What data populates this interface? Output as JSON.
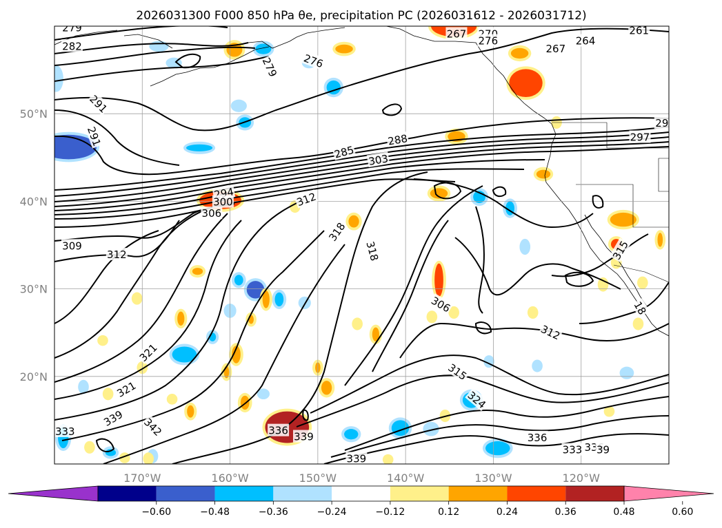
{
  "title": "2026031300 F000 850 hPa θe, precipitation PC (2026031612 - 2026031712)",
  "map": {
    "lon_range": [
      -180,
      -110
    ],
    "lat_range": [
      10,
      60
    ],
    "lon_ticks": [
      "170°W",
      "160°W",
      "150°W",
      "140°W",
      "130°W",
      "120°W"
    ],
    "lat_ticks": [
      "50°N",
      "40°N",
      "30°N",
      "20°N"
    ],
    "grid": true,
    "contour_variable": "850 hPa θe",
    "contour_labels": [
      {
        "text": "279",
        "lon": -178,
        "lat": 59.8,
        "rot": 0
      },
      {
        "text": "282",
        "lon": -178,
        "lat": 57.7,
        "rot": 0
      },
      {
        "text": "279",
        "lon": -155.5,
        "lat": 55.3,
        "rot": 65
      },
      {
        "text": "276",
        "lon": -150.5,
        "lat": 56.0,
        "rot": 20
      },
      {
        "text": "267",
        "lon": -134.2,
        "lat": 59.1,
        "rot": 0
      },
      {
        "text": "270",
        "lon": -130.6,
        "lat": 59.1,
        "rot": 0
      },
      {
        "text": "276",
        "lon": -130.6,
        "lat": 58.3,
        "rot": 0
      },
      {
        "text": "264",
        "lon": -119.5,
        "lat": 58.3,
        "rot": 0
      },
      {
        "text": "267",
        "lon": -122.9,
        "lat": 57.4,
        "rot": 0
      },
      {
        "text": "261",
        "lon": -113.4,
        "lat": 59.5,
        "rot": 0
      },
      {
        "text": "29",
        "lon": -110.8,
        "lat": 48.9,
        "rot": 0
      },
      {
        "text": "297",
        "lon": -113.3,
        "lat": 47.3,
        "rot": 0
      },
      {
        "text": "291",
        "lon": -175.0,
        "lat": 51.1,
        "rot": 45
      },
      {
        "text": "291",
        "lon": -175.5,
        "lat": 47.4,
        "rot": 70
      },
      {
        "text": "285",
        "lon": -147.0,
        "lat": 45.6,
        "rot": -15
      },
      {
        "text": "288",
        "lon": -140.9,
        "lat": 47.0,
        "rot": -10
      },
      {
        "text": "303",
        "lon": -143.1,
        "lat": 44.7,
        "rot": -10
      },
      {
        "text": "294",
        "lon": -160.7,
        "lat": 40.9,
        "rot": -10
      },
      {
        "text": "300",
        "lon": -160.8,
        "lat": 39.9,
        "rot": 0
      },
      {
        "text": "306",
        "lon": -162.1,
        "lat": 38.6,
        "rot": 0
      },
      {
        "text": "312",
        "lon": -151.3,
        "lat": 40.2,
        "rot": -20
      },
      {
        "text": "309",
        "lon": -178.0,
        "lat": 34.9,
        "rot": 0
      },
      {
        "text": "312",
        "lon": -172.9,
        "lat": 33.9,
        "rot": 0
      },
      {
        "text": "318",
        "lon": -147.8,
        "lat": 36.5,
        "rot": -55
      },
      {
        "text": "318",
        "lon": -143.8,
        "lat": 34.3,
        "rot": 75
      },
      {
        "text": "315",
        "lon": -115.5,
        "lat": 34.4,
        "rot": -60
      },
      {
        "text": "306",
        "lon": -136.0,
        "lat": 28.2,
        "rot": 30
      },
      {
        "text": "312",
        "lon": -123.5,
        "lat": 25.0,
        "rot": 25
      },
      {
        "text": "18",
        "lon": -113.3,
        "lat": 27.8,
        "rot": 60
      },
      {
        "text": "321",
        "lon": -169.3,
        "lat": 22.7,
        "rot": -45
      },
      {
        "text": "321",
        "lon": -171.8,
        "lat": 18.5,
        "rot": -30
      },
      {
        "text": "315",
        "lon": -134.1,
        "lat": 20.5,
        "rot": 35
      },
      {
        "text": "324",
        "lon": -131.9,
        "lat": 17.3,
        "rot": 40
      },
      {
        "text": "339",
        "lon": -173.3,
        "lat": 15.2,
        "rot": -30
      },
      {
        "text": "342",
        "lon": -168.8,
        "lat": 14.2,
        "rot": 45
      },
      {
        "text": "336",
        "lon": -154.5,
        "lat": 13.8,
        "rot": 0
      },
      {
        "text": "339",
        "lon": -151.6,
        "lat": 13.1,
        "rot": 0
      },
      {
        "text": "336",
        "lon": -125.0,
        "lat": 13.0,
        "rot": 0
      },
      {
        "text": "333",
        "lon": -178.8,
        "lat": 13.7,
        "rot": 0
      },
      {
        "text": "339",
        "lon": -145.6,
        "lat": 10.6,
        "rot": 0
      },
      {
        "text": "333",
        "lon": -121.0,
        "lat": 11.6,
        "rot": 0
      },
      {
        "text": "336",
        "lon": -118.5,
        "lat": 11.9,
        "rot": 0
      },
      {
        "text": "39",
        "lon": -117.5,
        "lat": 11.6,
        "rot": 0
      }
    ],
    "precip_blobs": [
      {
        "lon": -178.4,
        "lat": 46.2,
        "rx": 3.2,
        "ry": 1.4,
        "value": -0.48
      },
      {
        "lon": -179.8,
        "lat": 54.0,
        "rx": 0.5,
        "ry": 1.2,
        "value": -0.24
      },
      {
        "lon": -163.5,
        "lat": 46.1,
        "rx": 1.5,
        "ry": 0.4,
        "value": -0.36
      },
      {
        "lon": -156.2,
        "lat": 57.4,
        "rx": 0.9,
        "ry": 0.6,
        "value": -0.36
      },
      {
        "lon": -159.0,
        "lat": 50.9,
        "rx": 0.6,
        "ry": 0.4,
        "value": -0.24
      },
      {
        "lon": -148.2,
        "lat": 53.0,
        "rx": 0.8,
        "ry": 0.8,
        "value": -0.36
      },
      {
        "lon": -168.1,
        "lat": 57.7,
        "rx": 0.8,
        "ry": 0.3,
        "value": -0.24
      },
      {
        "lon": -158.3,
        "lat": 49.0,
        "rx": 0.7,
        "ry": 0.6,
        "value": -0.36
      },
      {
        "lon": -166.4,
        "lat": 55.8,
        "rx": 0.6,
        "ry": 0.3,
        "value": -0.24
      },
      {
        "lon": -151.0,
        "lat": 55.8,
        "rx": 0.5,
        "ry": 0.3,
        "value": -0.24
      },
      {
        "lon": -157.1,
        "lat": 29.9,
        "rx": 1.0,
        "ry": 1.0,
        "value": -0.48
      },
      {
        "lon": -154.4,
        "lat": 28.8,
        "rx": 0.5,
        "ry": 0.8,
        "value": -0.36
      },
      {
        "lon": -159.0,
        "lat": 31.0,
        "rx": 0.5,
        "ry": 0.6,
        "value": -0.36
      },
      {
        "lon": -165.2,
        "lat": 22.5,
        "rx": 1.4,
        "ry": 0.9,
        "value": -0.36
      },
      {
        "lon": -162.0,
        "lat": 24.5,
        "rx": 0.4,
        "ry": 0.5,
        "value": -0.36
      },
      {
        "lon": -160.0,
        "lat": 27.5,
        "rx": 0.4,
        "ry": 0.5,
        "value": -0.24
      },
      {
        "lon": -156.2,
        "lat": 18.0,
        "rx": 0.4,
        "ry": 0.3,
        "value": -0.24
      },
      {
        "lon": -179.0,
        "lat": 13.0,
        "rx": 0.6,
        "ry": 1.2,
        "value": -0.36
      },
      {
        "lon": -173.6,
        "lat": 11.3,
        "rx": 0.6,
        "ry": 0.4,
        "value": -0.36
      },
      {
        "lon": -168.8,
        "lat": 10.9,
        "rx": 0.3,
        "ry": 0.5,
        "value": -0.24
      },
      {
        "lon": -176.7,
        "lat": 18.8,
        "rx": 0.3,
        "ry": 0.5,
        "value": -0.24
      },
      {
        "lon": -146.2,
        "lat": 13.4,
        "rx": 0.8,
        "ry": 0.6,
        "value": -0.36
      },
      {
        "lon": -140.6,
        "lat": 14.1,
        "rx": 1.0,
        "ry": 0.9,
        "value": -0.36
      },
      {
        "lon": -137.1,
        "lat": 14.0,
        "rx": 0.6,
        "ry": 0.5,
        "value": -0.24
      },
      {
        "lon": -132.5,
        "lat": 17.3,
        "rx": 1.0,
        "ry": 0.9,
        "value": -0.36
      },
      {
        "lon": -129.5,
        "lat": 11.8,
        "rx": 1.4,
        "ry": 0.8,
        "value": -0.36
      },
      {
        "lon": -128.1,
        "lat": 39.2,
        "rx": 0.5,
        "ry": 0.8,
        "value": -0.36
      },
      {
        "lon": -131.6,
        "lat": 40.5,
        "rx": 0.7,
        "ry": 0.7,
        "value": -0.36
      },
      {
        "lon": -126.4,
        "lat": 34.8,
        "rx": 0.3,
        "ry": 0.6,
        "value": -0.24
      },
      {
        "lon": -125.0,
        "lat": 21.2,
        "rx": 0.3,
        "ry": 0.4,
        "value": -0.24
      },
      {
        "lon": -130.5,
        "lat": 21.7,
        "rx": 0.3,
        "ry": 0.4,
        "value": -0.24
      },
      {
        "lon": -114.8,
        "lat": 20.4,
        "rx": 0.5,
        "ry": 0.4,
        "value": -0.24
      },
      {
        "lon": -151.5,
        "lat": 28.4,
        "rx": 0.4,
        "ry": 0.4,
        "value": -0.24
      },
      {
        "lon": -161.1,
        "lat": 40.1,
        "rx": 2.4,
        "ry": 1.0,
        "value": 0.36
      },
      {
        "lon": -153.5,
        "lat": 14.2,
        "rx": 2.5,
        "ry": 1.8,
        "value": 0.48
      },
      {
        "lon": -136.2,
        "lat": 31.0,
        "rx": 0.5,
        "ry": 1.9,
        "value": 0.36
      },
      {
        "lon": -134.5,
        "lat": 60.0,
        "rx": 2.6,
        "ry": 1.2,
        "value": 0.36
      },
      {
        "lon": -126.3,
        "lat": 53.5,
        "rx": 1.9,
        "ry": 1.6,
        "value": 0.36
      },
      {
        "lon": -127.0,
        "lat": 56.9,
        "rx": 1.0,
        "ry": 0.6,
        "value": 0.24
      },
      {
        "lon": -115.2,
        "lat": 37.9,
        "rx": 1.5,
        "ry": 0.8,
        "value": 0.24
      },
      {
        "lon": -116.0,
        "lat": 35.1,
        "rx": 0.6,
        "ry": 0.6,
        "value": 0.36
      },
      {
        "lon": -136.2,
        "lat": 40.9,
        "rx": 1.0,
        "ry": 0.6,
        "value": 0.24
      },
      {
        "lon": -145.9,
        "lat": 37.7,
        "rx": 0.6,
        "ry": 0.7,
        "value": 0.24
      },
      {
        "lon": -147.0,
        "lat": 57.4,
        "rx": 1.0,
        "ry": 0.5,
        "value": 0.24
      },
      {
        "lon": -159.5,
        "lat": 57.3,
        "rx": 0.9,
        "ry": 0.8,
        "value": 0.24
      },
      {
        "lon": -145.5,
        "lat": 26.0,
        "rx": 0.3,
        "ry": 0.4,
        "value": 0.12
      },
      {
        "lon": -143.4,
        "lat": 24.8,
        "rx": 0.4,
        "ry": 0.8,
        "value": 0.24
      },
      {
        "lon": -155.9,
        "lat": 28.8,
        "rx": 0.4,
        "ry": 1.0,
        "value": 0.24
      },
      {
        "lon": -157.6,
        "lat": 26.5,
        "rx": 0.3,
        "ry": 0.5,
        "value": 0.24
      },
      {
        "lon": -159.3,
        "lat": 22.5,
        "rx": 0.5,
        "ry": 1.0,
        "value": 0.24
      },
      {
        "lon": -160.4,
        "lat": 20.5,
        "rx": 0.3,
        "ry": 0.7,
        "value": 0.24
      },
      {
        "lon": -158.3,
        "lat": 17.0,
        "rx": 0.5,
        "ry": 0.8,
        "value": 0.24
      },
      {
        "lon": -170.0,
        "lat": 21.0,
        "rx": 0.3,
        "ry": 0.4,
        "value": 0.12
      },
      {
        "lon": -164.5,
        "lat": 16.0,
        "rx": 0.4,
        "ry": 0.7,
        "value": 0.24
      },
      {
        "lon": -150.0,
        "lat": 21.0,
        "rx": 0.3,
        "ry": 0.6,
        "value": 0.24
      },
      {
        "lon": -137.0,
        "lat": 26.8,
        "rx": 0.3,
        "ry": 0.4,
        "value": 0.12
      },
      {
        "lon": -134.5,
        "lat": 27.3,
        "rx": 0.3,
        "ry": 0.4,
        "value": 0.12
      },
      {
        "lon": -125.5,
        "lat": 27.3,
        "rx": 0.3,
        "ry": 0.4,
        "value": 0.12
      },
      {
        "lon": -170.6,
        "lat": 28.9,
        "rx": 0.3,
        "ry": 0.4,
        "value": 0.12
      },
      {
        "lon": -165.6,
        "lat": 26.6,
        "rx": 0.4,
        "ry": 0.8,
        "value": 0.24
      },
      {
        "lon": -174.5,
        "lat": 24.1,
        "rx": 0.3,
        "ry": 0.3,
        "value": 0.12
      },
      {
        "lon": -173.9,
        "lat": 18.0,
        "rx": 0.3,
        "ry": 0.4,
        "value": 0.12
      },
      {
        "lon": -166.6,
        "lat": 17.4,
        "rx": 0.3,
        "ry": 0.3,
        "value": 0.12
      },
      {
        "lon": -176.0,
        "lat": 11.9,
        "rx": 0.3,
        "ry": 0.4,
        "value": 0.12
      },
      {
        "lon": -169.3,
        "lat": 10.6,
        "rx": 0.3,
        "ry": 0.4,
        "value": 0.12
      },
      {
        "lon": -152.6,
        "lat": 39.4,
        "rx": 0.3,
        "ry": 0.4,
        "value": 0.12
      },
      {
        "lon": -163.7,
        "lat": 32.0,
        "rx": 0.6,
        "ry": 0.4,
        "value": 0.24
      },
      {
        "lon": -149.0,
        "lat": 18.7,
        "rx": 0.6,
        "ry": 0.8,
        "value": 0.24
      },
      {
        "lon": -134.2,
        "lat": 47.4,
        "rx": 1.0,
        "ry": 0.6,
        "value": 0.24
      },
      {
        "lon": -124.3,
        "lat": 43.1,
        "rx": 0.8,
        "ry": 0.5,
        "value": 0.24
      },
      {
        "lon": -117.5,
        "lat": 30.5,
        "rx": 0.3,
        "ry": 0.5,
        "value": 0.12
      },
      {
        "lon": -113.0,
        "lat": 30.7,
        "rx": 0.3,
        "ry": 0.4,
        "value": 0.12
      },
      {
        "lon": -116.0,
        "lat": 33.0,
        "rx": 0.3,
        "ry": 0.4,
        "value": 0.12
      },
      {
        "lon": -111.0,
        "lat": 35.6,
        "rx": 0.3,
        "ry": 0.8,
        "value": 0.24
      },
      {
        "lon": -113.5,
        "lat": 26.0,
        "rx": 0.3,
        "ry": 0.4,
        "value": 0.12
      },
      {
        "lon": -116.8,
        "lat": 16.0,
        "rx": 0.3,
        "ry": 0.3,
        "value": 0.12
      },
      {
        "lon": -122.8,
        "lat": 49.0,
        "rx": 0.3,
        "ry": 0.4,
        "value": 0.12
      },
      {
        "lon": -142.0,
        "lat": 10.5,
        "rx": 0.3,
        "ry": 0.3,
        "value": 0.12
      },
      {
        "lon": -172.0,
        "lat": 10.7,
        "rx": 0.3,
        "ry": 0.3,
        "value": 0.12
      },
      {
        "lon": -135.5,
        "lat": 15.5,
        "rx": 0.3,
        "ry": 0.4,
        "value": 0.12
      }
    ]
  },
  "colorbar": {
    "ticks": [
      "−0.60",
      "−0.48",
      "−0.36",
      "−0.24",
      "−0.12",
      "0.12",
      "0.24",
      "0.36",
      "0.48",
      "0.60"
    ],
    "colors": [
      "#9932cc",
      "#00008b",
      "#3a5fcd",
      "#00bfff",
      "#b0e2ff",
      "#ffffff",
      "#fff08a",
      "#ffa500",
      "#ff4500",
      "#b22222",
      "#ff82ab"
    ],
    "extend": "both"
  }
}
